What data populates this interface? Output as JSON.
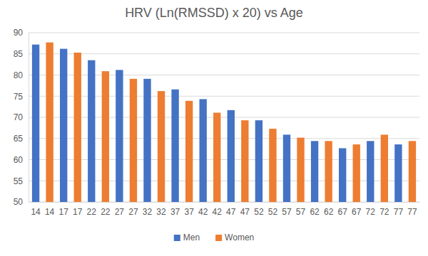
{
  "chart_data": {
    "type": "bar",
    "title": "HRV (Ln(RMSSD) x 20) vs Age",
    "categories": [
      "14",
      "14",
      "17",
      "17",
      "22",
      "22",
      "27",
      "27",
      "32",
      "32",
      "37",
      "37",
      "42",
      "42",
      "47",
      "47",
      "52",
      "52",
      "57",
      "57",
      "62",
      "62",
      "67",
      "67",
      "72",
      "72",
      "77",
      "77"
    ],
    "series": [
      {
        "name": "Men",
        "color": "#4472c4",
        "values": [
          87.2,
          null,
          86.2,
          null,
          83.5,
          null,
          81.2,
          null,
          79.1,
          null,
          76.6,
          null,
          74.3,
          null,
          71.7,
          null,
          69.3,
          null,
          65.9,
          null,
          64.4,
          null,
          62.7,
          null,
          64.4,
          null,
          63.6,
          null
        ]
      },
      {
        "name": "Women",
        "color": "#ed7d31",
        "values": [
          null,
          87.7,
          null,
          85.3,
          null,
          80.9,
          null,
          79.1,
          null,
          76.2,
          null,
          73.9,
          null,
          71.1,
          null,
          69.3,
          null,
          67.3,
          null,
          65.2,
          null,
          64.4,
          null,
          63.6,
          null,
          65.9,
          null,
          64.4
        ]
      }
    ],
    "ylim": [
      50,
      90
    ],
    "yticks": [
      50,
      55,
      60,
      65,
      70,
      75,
      80,
      85,
      90
    ],
    "grid": true,
    "legend": "bottom"
  }
}
